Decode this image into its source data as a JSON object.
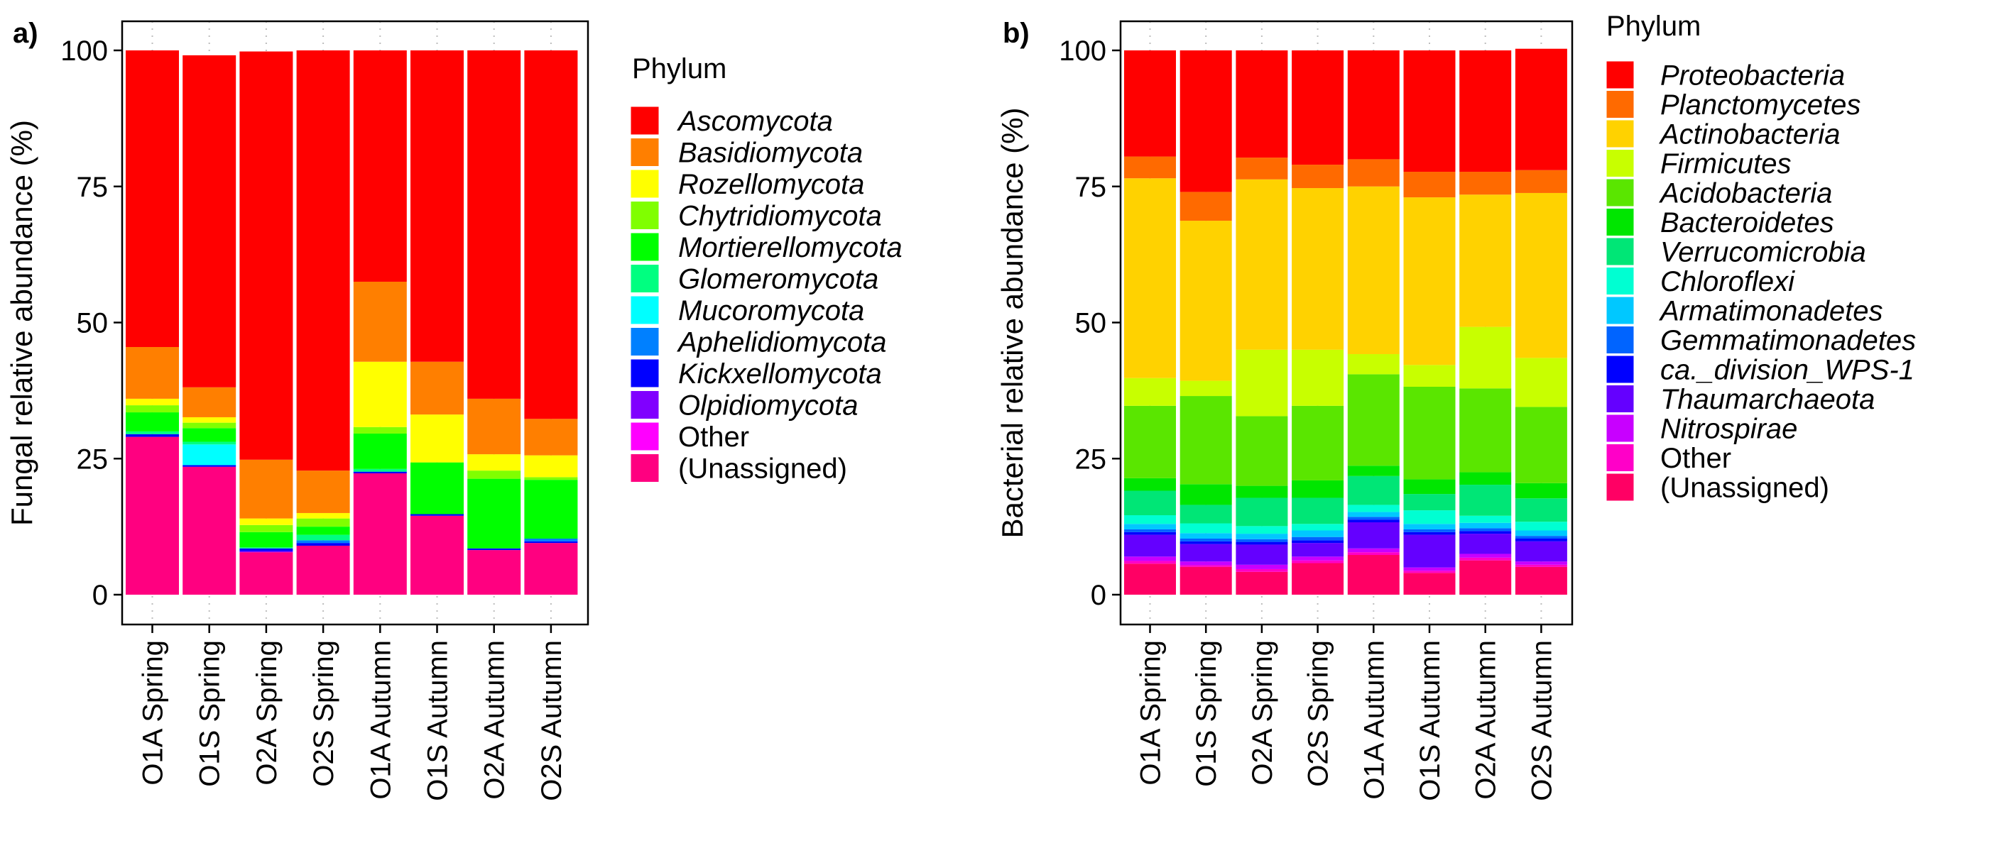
{
  "chart_data": [
    {
      "type": "bar",
      "stacked": true,
      "panel_label": "a)",
      "title": "",
      "xlabel": "",
      "ylabel": "Fungal relative abundance (%)",
      "ylim": [
        0,
        100
      ],
      "yticks": [
        "0",
        "25",
        "50",
        "75",
        "100"
      ],
      "grid": true,
      "legend_position": "right",
      "legend_title": "Phylum",
      "categories": [
        "O1A Spring",
        "O1S Spring",
        "O2A Spring",
        "O2S Spring",
        "O1A Autumn",
        "O1S Autumn",
        "O2A Autumn",
        "O2S Autumn"
      ],
      "series": [
        {
          "name": "Ascomycota",
          "color": "#FF0000",
          "italic": true,
          "values": [
            54.5,
            61,
            75,
            77.2,
            42.5,
            57.2,
            64,
            67.7
          ]
        },
        {
          "name": "Basidiomycota",
          "color": "#FF7F00",
          "italic": true,
          "values": [
            9.5,
            5.5,
            10.8,
            7.8,
            14.7,
            9.7,
            10.2,
            6.7
          ]
        },
        {
          "name": "Rozellomycota",
          "color": "#FFFF00",
          "italic": true,
          "values": [
            1.2,
            1,
            1.2,
            1,
            12,
            8.8,
            3,
            4
          ]
        },
        {
          "name": "Chytridiomycota",
          "color": "#80FF00",
          "italic": true,
          "values": [
            1.3,
            1,
            1.3,
            1.5,
            1.2,
            0,
            1.5,
            0.5
          ]
        },
        {
          "name": "Mortierellomycota",
          "color": "#00FF00",
          "italic": true,
          "values": [
            3.5,
            2.5,
            2.8,
            1.5,
            6.5,
            9.5,
            12.8,
            10.8
          ]
        },
        {
          "name": "Glomeromycota",
          "color": "#00FF80",
          "italic": true,
          "values": [
            0.5,
            0.5,
            0.2,
            1,
            0.5,
            0,
            0,
            0
          ]
        },
        {
          "name": "Mucoromycota",
          "color": "#00FFFF",
          "italic": true,
          "values": [
            0,
            3.8,
            0,
            0,
            0,
            0,
            0,
            0
          ]
        },
        {
          "name": "Aphelidiomycota",
          "color": "#0080FF",
          "italic": true,
          "values": [
            0,
            0,
            0,
            0.5,
            0,
            0,
            0,
            0.5
          ]
        },
        {
          "name": "Kickxellomycota",
          "color": "#0000FF",
          "italic": true,
          "values": [
            0.5,
            0.3,
            0.5,
            0.5,
            0.3,
            0.3,
            0.3,
            0.3
          ]
        },
        {
          "name": "Olpidiomycota",
          "color": "#8000FF",
          "italic": true,
          "values": [
            0,
            0,
            0.2,
            0,
            0,
            0,
            0,
            0
          ]
        },
        {
          "name": "Other",
          "color": "#FF00FF",
          "italic": false,
          "values": [
            0,
            0,
            0,
            0,
            0,
            0,
            0,
            0
          ]
        },
        {
          "name": "(Unassigned)",
          "color": "#FF0080",
          "italic": false,
          "values": [
            29,
            23.5,
            7.8,
            9,
            22.3,
            14.5,
            8.2,
            9.5
          ]
        }
      ]
    },
    {
      "type": "bar",
      "stacked": true,
      "panel_label": "b)",
      "title": "",
      "xlabel": "",
      "ylabel": "Bacterial relative abundance (%)",
      "ylim": [
        0,
        100
      ],
      "yticks": [
        "0",
        "25",
        "50",
        "75",
        "100"
      ],
      "grid": true,
      "legend_position": "right",
      "legend_title": "Phylum",
      "categories": [
        "O1A Spring",
        "O1S Spring",
        "O2A Spring",
        "O2S Spring",
        "O1A Autumn",
        "O1S Autumn",
        "O2A Autumn",
        "O2S Autumn"
      ],
      "series": [
        {
          "name": "Proteobacteria",
          "color": "#FF0000",
          "italic": true,
          "values": [
            19.5,
            26,
            19.7,
            21,
            20,
            22.3,
            22.3,
            22.3
          ]
        },
        {
          "name": "Planctomycetes",
          "color": "#FF6A00",
          "italic": true,
          "values": [
            4,
            5.3,
            4,
            4.3,
            5,
            4.7,
            4.2,
            4.2
          ]
        },
        {
          "name": "Actinobacteria",
          "color": "#FFD200",
          "italic": true,
          "values": [
            36.7,
            29.4,
            31.3,
            29.7,
            30.8,
            30.8,
            24.3,
            30.3
          ]
        },
        {
          "name": "Firmicutes",
          "color": "#C8FF00",
          "italic": true,
          "values": [
            5.1,
            2.8,
            12.2,
            10.3,
            3.7,
            4,
            11.3,
            9
          ]
        },
        {
          "name": "Acidobacteria",
          "color": "#5AE600",
          "italic": true,
          "values": [
            13.3,
            16.2,
            12.8,
            13.7,
            16.8,
            17,
            15.4,
            14
          ]
        },
        {
          "name": "Bacteroidetes",
          "color": "#00E600",
          "italic": true,
          "values": [
            2.3,
            3.8,
            2.2,
            3.2,
            1.9,
            2.7,
            2.3,
            2.8
          ]
        },
        {
          "name": "Verrucomicrobia",
          "color": "#00E676",
          "italic": true,
          "values": [
            4.5,
            3.4,
            5.2,
            4.8,
            5.3,
            3,
            5.7,
            4.3
          ]
        },
        {
          "name": "Chloroflexi",
          "color": "#00FFD2",
          "italic": true,
          "values": [
            1.6,
            1.8,
            1.4,
            1.2,
            1.3,
            2.5,
            1.3,
            1.6
          ]
        },
        {
          "name": "Armatimonadetes",
          "color": "#00C8FF",
          "italic": true,
          "values": [
            1,
            1,
            1,
            1.2,
            0.9,
            1,
            1,
            1
          ]
        },
        {
          "name": "Gemmatimonadetes",
          "color": "#0064FF",
          "italic": true,
          "values": [
            0.5,
            0.5,
            0.5,
            0.6,
            0.5,
            0.5,
            0.5,
            0.5
          ]
        },
        {
          "name": "ca._division_WPS-1",
          "color": "#0000FF",
          "italic": true,
          "values": [
            0.5,
            0.5,
            0.5,
            0.5,
            0.5,
            0.5,
            0.5,
            0.5
          ]
        },
        {
          "name": "Thaumarchaeota",
          "color": "#6400FF",
          "italic": true,
          "values": [
            4,
            3.2,
            3.7,
            2.5,
            4.8,
            6,
            3.7,
            3.7
          ]
        },
        {
          "name": "Nitrospirae",
          "color": "#C800FF",
          "italic": true,
          "values": [
            0.8,
            0.7,
            0.8,
            0.7,
            0.7,
            0.6,
            0.7,
            0.6
          ]
        },
        {
          "name": "Other",
          "color": "#FF00C8",
          "italic": false,
          "values": [
            0.5,
            0.3,
            0.5,
            0.5,
            0.5,
            0.4,
            0.5,
            0.4
          ]
        },
        {
          "name": "(Unassigned)",
          "color": "#FF0064",
          "italic": false,
          "values": [
            5.7,
            5.1,
            4.2,
            5.8,
            7.3,
            4.0,
            6.3,
            5.1
          ]
        }
      ]
    }
  ]
}
